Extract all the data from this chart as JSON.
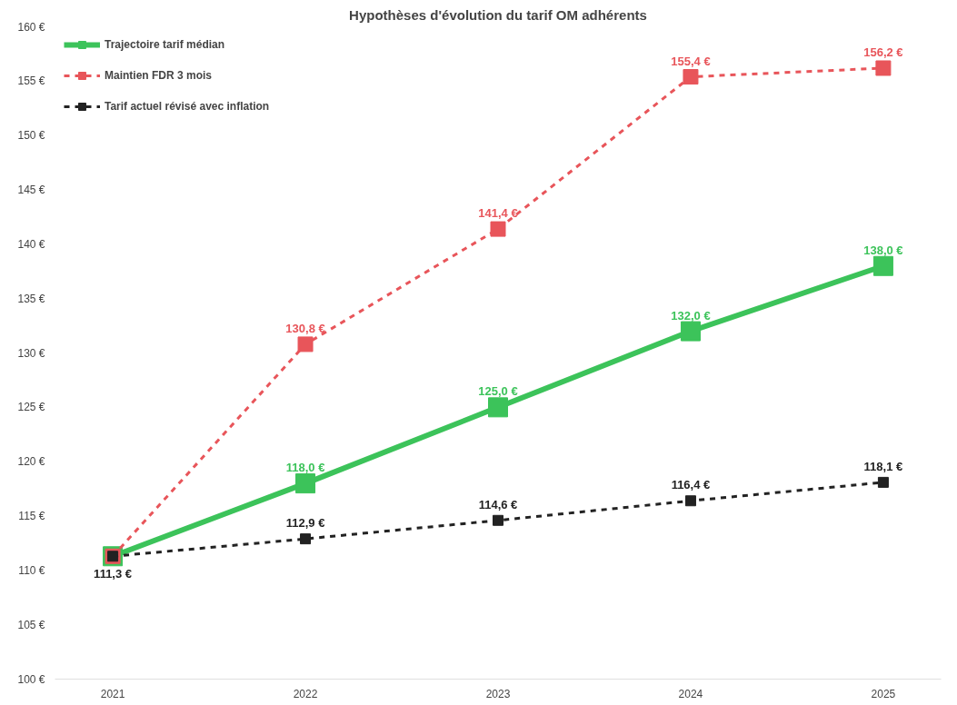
{
  "chart_data": {
    "type": "line",
    "title": "Hypothèses d'évolution du tarif OM adhérents",
    "categories": [
      "2021",
      "2022",
      "2023",
      "2024",
      "2025"
    ],
    "series": [
      {
        "name": "Trajectoire tarif médian",
        "color": "#3cc35a",
        "line_style": "solid",
        "values": [
          111.3,
          118.0,
          125.0,
          132.0,
          138.0
        ],
        "value_labels": [
          null,
          "118,0 €",
          "125,0 €",
          "132,0 €",
          "138,0 €"
        ]
      },
      {
        "name": "Maintien FDR 3 mois",
        "color": "#e8555a",
        "line_style": "dashed",
        "values": [
          111.3,
          130.8,
          141.4,
          155.4,
          156.2
        ],
        "value_labels": [
          null,
          "130,8 €",
          "141,4 €",
          "155,4 €",
          "156,2 €"
        ]
      },
      {
        "name": "Tarif actuel révisé avec inflation",
        "color": "#222222",
        "line_style": "dashed",
        "values": [
          111.3,
          112.9,
          114.6,
          116.4,
          118.1
        ],
        "value_labels": [
          "111,3 €",
          "112,9 €",
          "114,6 €",
          "116,4 €",
          "118,1 €"
        ]
      }
    ],
    "ylim": [
      100,
      160
    ],
    "yticks": [
      {
        "value": 100,
        "label": "100 €"
      },
      {
        "value": 105,
        "label": "105 €"
      },
      {
        "value": 110,
        "label": "110 €"
      },
      {
        "value": 115,
        "label": "115 €"
      },
      {
        "value": 120,
        "label": "120 €"
      },
      {
        "value": 125,
        "label": "125 €"
      },
      {
        "value": 130,
        "label": "130 €"
      },
      {
        "value": 135,
        "label": "135 €"
      },
      {
        "value": 140,
        "label": "140 €"
      },
      {
        "value": 145,
        "label": "145 €"
      },
      {
        "value": 150,
        "label": "150 €"
      },
      {
        "value": 155,
        "label": "155 €"
      },
      {
        "value": 160,
        "label": "160 €"
      }
    ],
    "grid": false,
    "legend": "top left",
    "marker": "square"
  }
}
